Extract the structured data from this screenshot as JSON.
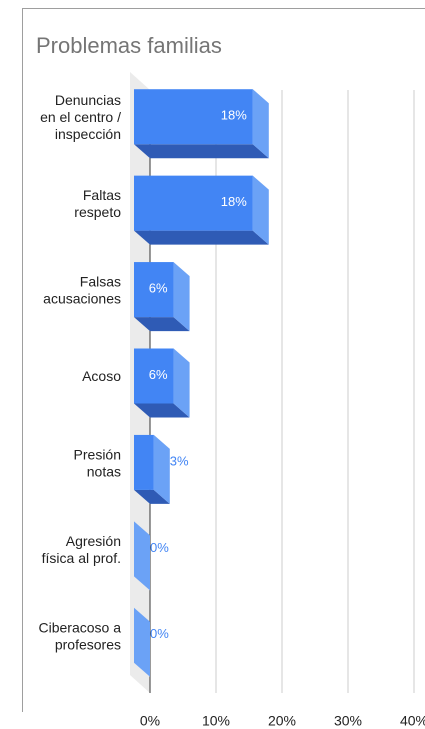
{
  "chart_data": {
    "type": "bar3d_horizontal",
    "title": "Problemas familias",
    "categories": [
      "Denuncias\nen el centro /\ninspección",
      "Faltas\nrespeto",
      "Falsas\nacusaciones",
      "Acoso",
      "Presión\nnotas",
      "Agresión\nfísica al prof.",
      "Ciberacoso a\nprofesores"
    ],
    "values": [
      18,
      18,
      6,
      6,
      3,
      0,
      0
    ],
    "value_labels": [
      "18%",
      "18%",
      "6%",
      "6%",
      "3%",
      "0%",
      "0%"
    ],
    "color": "#4285f4",
    "xlim": [
      0,
      40
    ],
    "xticks": [
      {
        "value": 0,
        "label": "0%"
      },
      {
        "value": 10,
        "label": "10%"
      },
      {
        "value": 20,
        "label": "20%"
      },
      {
        "value": 30,
        "label": "30%"
      },
      {
        "value": 40,
        "label": "40%"
      }
    ],
    "grid": true
  }
}
